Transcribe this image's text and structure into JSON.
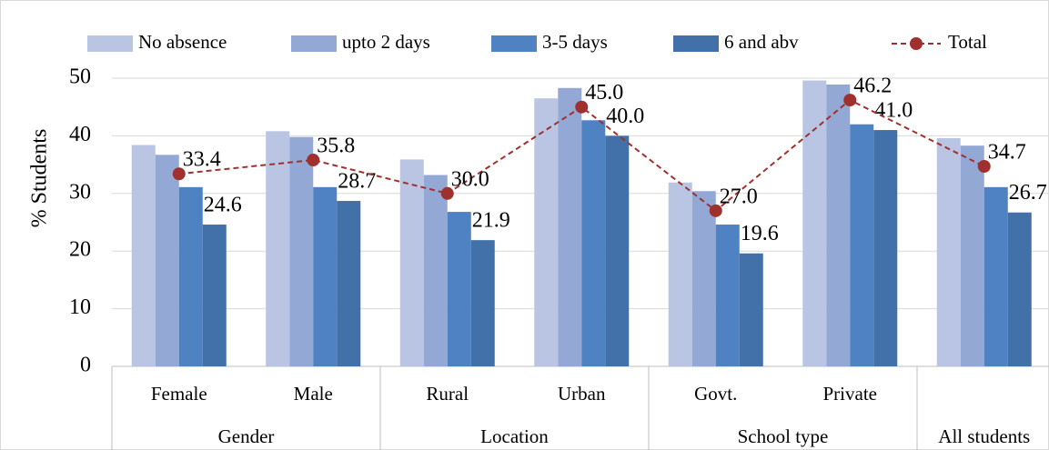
{
  "chart_data": {
    "type": "bar",
    "y_axis_label": "% Students",
    "categories": [
      "Female",
      "Male",
      "Rural",
      "Urban",
      "Govt.",
      "Private",
      null
    ],
    "groups": [
      "Gender",
      "Location",
      "School type",
      "All students"
    ],
    "ylim": [
      0,
      50
    ],
    "yticks": [
      0,
      10,
      20,
      30,
      40,
      50
    ],
    "grid": true,
    "legend": "top",
    "series": [
      {
        "name": "No absence",
        "type": "bar",
        "color": "#b9c5e3",
        "values": [
          38.4,
          40.8,
          35.9,
          46.5,
          31.9,
          49.6,
          39.6
        ]
      },
      {
        "name": "upto 2 days",
        "type": "bar",
        "color": "#93a8d5",
        "values": [
          36.7,
          39.8,
          33.2,
          48.3,
          30.4,
          48.9,
          38.3
        ]
      },
      {
        "name": "3-5 days",
        "type": "bar",
        "color": "#4f82c3",
        "values": [
          31.1,
          31.1,
          26.8,
          42.7,
          24.6,
          42.0,
          31.1
        ]
      },
      {
        "name": "6 and abv",
        "type": "bar",
        "color": "#4171a8",
        "values": [
          24.6,
          28.7,
          21.9,
          40.0,
          19.6,
          41.0,
          26.7
        ],
        "value_labels": [
          "24.6",
          "28.7",
          "21.9",
          "40.0",
          "19.6",
          "41.0",
          "26.7"
        ]
      },
      {
        "name": "Total",
        "type": "line",
        "color": "#a0302e",
        "values": [
          33.4,
          35.8,
          30.0,
          45.0,
          27.0,
          46.2,
          34.7
        ],
        "value_labels": [
          "33.4",
          "35.8",
          "30.0",
          "45.0",
          "27.0",
          "46.2",
          "34.7"
        ]
      }
    ]
  }
}
